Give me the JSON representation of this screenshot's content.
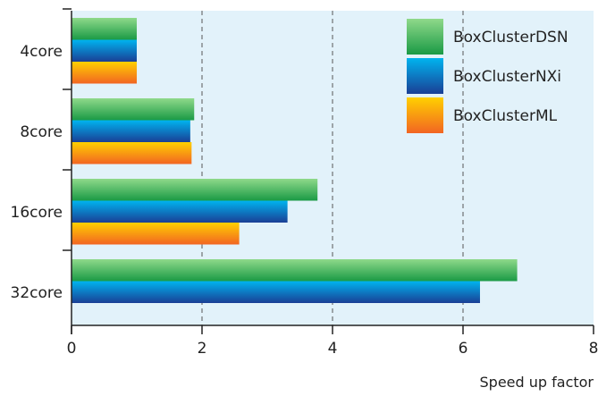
{
  "chart_data": {
    "type": "bar",
    "orientation": "horizontal",
    "categories": [
      "4core",
      "8core",
      "16core",
      "32core"
    ],
    "series": [
      {
        "name": "BoxClusterDSN",
        "values": [
          1.0,
          1.88,
          3.77,
          6.83
        ],
        "color_light": "#8fd98a",
        "color_dark": "#1a9a45"
      },
      {
        "name": "BoxClusterNXi",
        "values": [
          1.0,
          1.82,
          3.31,
          6.26
        ],
        "color_light": "#00b4ef",
        "color_dark": "#1a3f95"
      },
      {
        "name": "BoxClusterML",
        "values": [
          1.0,
          1.84,
          2.57,
          null
        ],
        "color_light": "#ffd000",
        "color_dark": "#f26522"
      }
    ],
    "xlabel": "Speed up factor",
    "ylabel": "",
    "xlim": [
      0,
      8
    ],
    "xticks": [
      "0",
      "2",
      "4",
      "6",
      "8"
    ],
    "grid": "vertical dashed",
    "legend_position": "top-right",
    "plot_background": "#e2f2fa"
  }
}
